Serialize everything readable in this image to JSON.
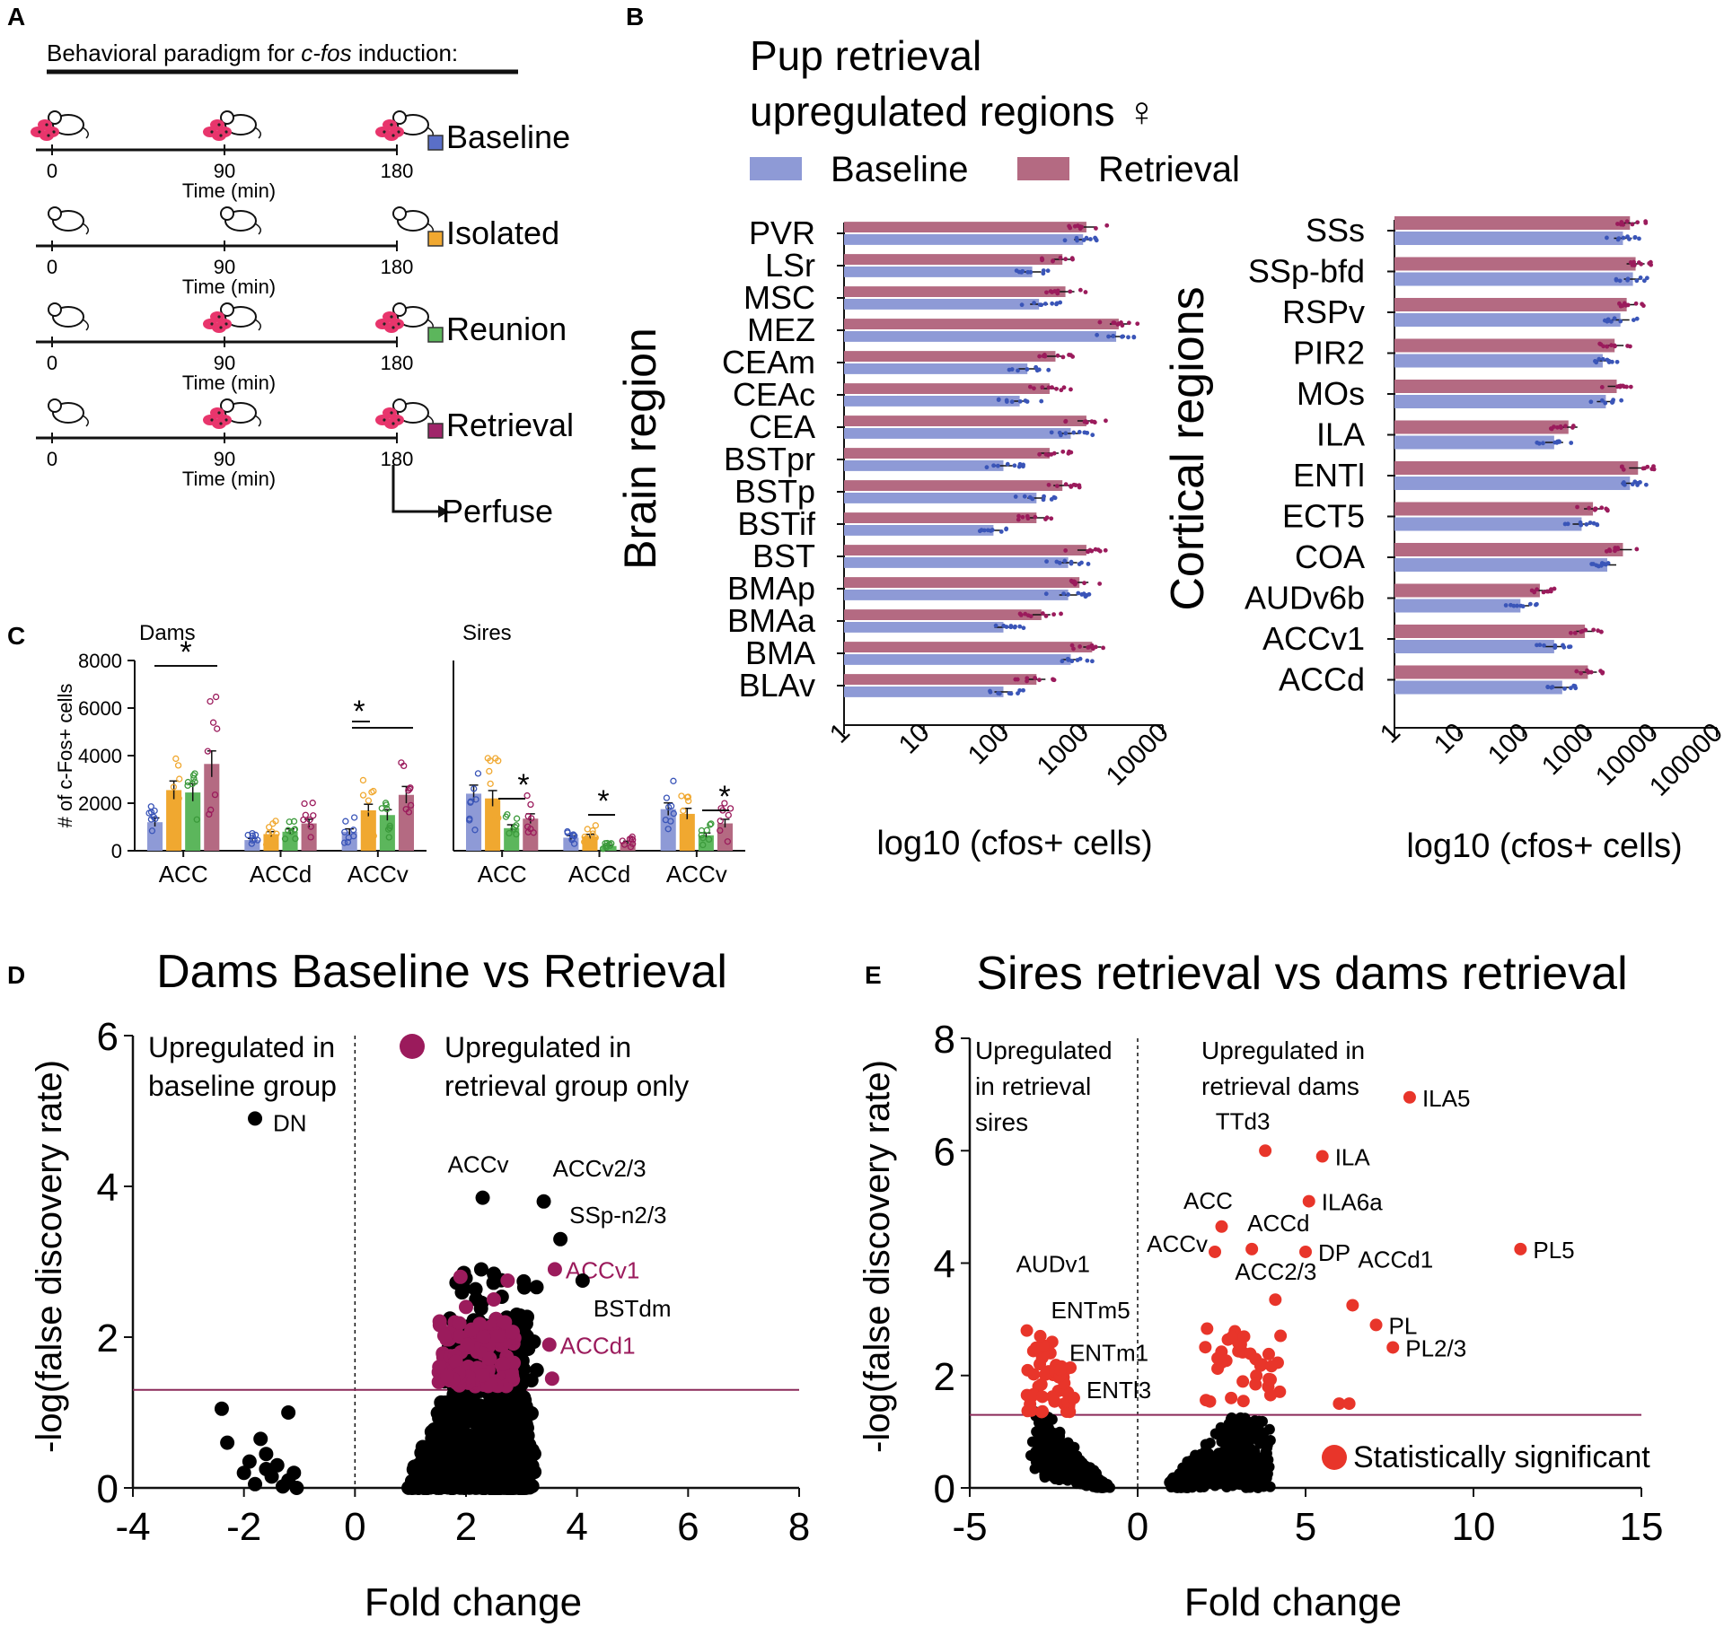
{
  "figure": {
    "palette": {
      "baseline": "#8e9ad6",
      "isolated": "#f0a830",
      "reunion": "#5cb65c",
      "retrieval": "#b46a82",
      "retrieval_dark": "#9b1b5c",
      "baseline_dot": "#3a55b8",
      "significant": "#e8352a",
      "threshold": "#8b2a5a"
    }
  },
  "panelA": {
    "letter": "A",
    "title": "Behavioral paradigm for c-fos induction:",
    "title_plain": "Behavioral paradigm for ",
    "title_italic": "c-fos",
    "title_tail": " induction:",
    "ticks": [
      "0",
      "90",
      "180"
    ],
    "time_label": "Time (min)",
    "rows": [
      {
        "label": "Baseline",
        "color": "#5a6fc8"
      },
      {
        "label": "Isolated",
        "color": "#f0a830"
      },
      {
        "label": "Reunion",
        "color": "#5cb65c"
      },
      {
        "label": "Retrieval",
        "color": "#a0256a"
      }
    ],
    "perfuse": "Perfuse",
    "icons": [
      "pup-cluster-icon",
      "mouse-icon"
    ]
  },
  "panelB": {
    "letter": "B",
    "title_line1": "Pup retrieval",
    "title_line2": "upregulated regions ♀",
    "legend": [
      "Baseline",
      "Retrieval"
    ],
    "chart_data": [
      {
        "type": "bar",
        "orientation": "horizontal",
        "scale": "log10",
        "ylabel": "Brain region",
        "xlabel": "log10 (cfos+ cells)",
        "xticks": [
          "1",
          "10",
          "100",
          "1000",
          "10000"
        ],
        "xlim": [
          1,
          10000
        ],
        "categories": [
          "PVR",
          "LSr",
          "MSC",
          "MEZ",
          "CEAm",
          "CEAc",
          "CEA",
          "BSTpr",
          "BSTp",
          "BSTif",
          "BST",
          "BMAp",
          "BMAa",
          "BMA",
          "BLAv"
        ],
        "series": [
          {
            "name": "Retrieval",
            "values": [
              1100,
              550,
              600,
              2800,
              450,
              380,
              1100,
              380,
              550,
              260,
              1100,
              900,
              300,
              1300,
              260
            ]
          },
          {
            "name": "Baseline",
            "values": [
              1000,
              230,
              280,
              2600,
              200,
              160,
              700,
              100,
              260,
              75,
              650,
              650,
              100,
              700,
              100
            ]
          }
        ]
      },
      {
        "type": "bar",
        "orientation": "horizontal",
        "scale": "log10",
        "ylabel": "Cortical regions",
        "xlabel": "log10 (cfos+ cells)",
        "xticks": [
          "1",
          "10",
          "100",
          "1000",
          "10000",
          "100000"
        ],
        "xlim": [
          1,
          100000
        ],
        "categories": [
          "SSs",
          "SSp-bfd",
          "RSPv",
          "PIR2",
          "MOs",
          "ILA",
          "ENTl",
          "ECT5",
          "COA",
          "AUDv6b",
          "ACCv1",
          "ACCd"
        ],
        "series": [
          {
            "name": "Retrieval",
            "values": [
              4500,
              5500,
              4000,
              2600,
              2800,
              500,
              6000,
              1200,
              3500,
              180,
              900,
              1000
            ]
          },
          {
            "name": "Baseline",
            "values": [
              3500,
              5000,
              3200,
              1700,
              1900,
              300,
              4500,
              800,
              2000,
              90,
              300,
              400
            ]
          }
        ]
      }
    ]
  },
  "panelC": {
    "letter": "C",
    "chart_data": {
      "type": "bar",
      "ylabel": "# of c-Fos+ cells",
      "ylim": [
        0,
        8000
      ],
      "yticks": [
        "0",
        "2000",
        "4000",
        "6000",
        "8000"
      ],
      "groups": [
        "Baseline",
        "Isolated",
        "Reunion",
        "Retrieval"
      ],
      "subplots": [
        {
          "title": "Dams",
          "categories": [
            "ACC",
            "ACCd",
            "ACCv"
          ],
          "series": [
            {
              "name": "Baseline",
              "values": [
                1200,
                450,
                800
              ]
            },
            {
              "name": "Isolated",
              "values": [
                2550,
                700,
                1700
              ]
            },
            {
              "name": "Reunion",
              "values": [
                2450,
                800,
                1500
              ]
            },
            {
              "name": "Retrieval",
              "values": [
                3650,
                1150,
                2350
              ]
            }
          ],
          "significance": [
            "*",
            "*"
          ]
        },
        {
          "title": "Sires",
          "categories": [
            "ACC",
            "ACCd",
            "ACCv"
          ],
          "series": [
            {
              "name": "Baseline",
              "values": [
                2400,
                550,
                1750
              ]
            },
            {
              "name": "Isolated",
              "values": [
                2200,
                600,
                1550
              ]
            },
            {
              "name": "Reunion",
              "values": [
                950,
                200,
                650
              ]
            },
            {
              "name": "Retrieval",
              "values": [
                1350,
                350,
                1150
              ]
            }
          ],
          "significance": [
            "*",
            "*",
            "*"
          ]
        }
      ]
    }
  },
  "panelD": {
    "letter": "D",
    "chart_data": {
      "type": "scatter",
      "title": "Dams Baseline vs Retrieval",
      "xlabel": "Fold change",
      "ylabel": "-log(false discovery rate)",
      "xlim": [
        -4,
        8
      ],
      "ylim": [
        0,
        6
      ],
      "xticks": [
        "-4",
        "-2",
        "0",
        "2",
        "4",
        "6",
        "8"
      ],
      "yticks": [
        "0",
        "2",
        "4",
        "6"
      ],
      "threshold": 1.3,
      "annotation_left": [
        "Upregulated in",
        "baseline group"
      ],
      "legend_label": [
        "Upregulated in",
        "retrieval group only"
      ],
      "labeled_points": [
        {
          "label": "DN",
          "x": -1.8,
          "y": 4.9,
          "group": "other"
        },
        {
          "label": "ACCv",
          "x": 2.3,
          "y": 3.85,
          "group": "other"
        },
        {
          "label": "ACCv2/3",
          "x": 3.4,
          "y": 3.8,
          "group": "other"
        },
        {
          "label": "SSp-n2/3",
          "x": 3.7,
          "y": 3.3,
          "group": "other"
        },
        {
          "label": "ACCv1",
          "x": 3.6,
          "y": 2.9,
          "group": "retrieval"
        },
        {
          "label": "BSTdm",
          "x": 4.1,
          "y": 2.75,
          "group": "other"
        },
        {
          "label": "ACCd1",
          "x": 3.5,
          "y": 1.9,
          "group": "retrieval"
        }
      ]
    }
  },
  "panelE": {
    "letter": "E",
    "chart_data": {
      "type": "scatter",
      "title": "Sires retrieval vs dams retrieval",
      "xlabel": "Fold change",
      "ylabel": "-log(false discovery rate)",
      "xlim": [
        -5,
        15
      ],
      "ylim": [
        0,
        8
      ],
      "xticks": [
        "-5",
        "0",
        "5",
        "10",
        "15"
      ],
      "yticks": [
        "0",
        "2",
        "4",
        "6",
        "8"
      ],
      "threshold": 1.3,
      "annotation_left": [
        "Upregulated",
        "in retrieval",
        "sires"
      ],
      "annotation_right": [
        "Upregulated in",
        "retrieval dams"
      ],
      "legend_label": "Statistically significant",
      "labeled_points": [
        {
          "label": "ILA5",
          "x": 8.1,
          "y": 6.95
        },
        {
          "label": "TTd3",
          "x": 3.8,
          "y": 6.0
        },
        {
          "label": "ILA",
          "x": 5.5,
          "y": 5.9
        },
        {
          "label": "ILA6a",
          "x": 5.1,
          "y": 5.1
        },
        {
          "label": "ACC",
          "x": 2.5,
          "y": 4.65
        },
        {
          "label": "ACCd",
          "x": 3.4,
          "y": 4.25
        },
        {
          "label": "ACCv",
          "x": 2.3,
          "y": 4.2
        },
        {
          "label": "DP",
          "x": 5.0,
          "y": 4.2
        },
        {
          "label": "PL5",
          "x": 11.4,
          "y": 4.25
        },
        {
          "label": "AUDv1",
          "x": -3.3,
          "y": 2.8
        },
        {
          "label": "ACC2/3",
          "x": 4.1,
          "y": 3.35
        },
        {
          "label": "ACCd1",
          "x": 6.4,
          "y": 3.25
        },
        {
          "label": "ENTm5",
          "x": -2.9,
          "y": 2.7
        },
        {
          "label": "PL",
          "x": 7.1,
          "y": 2.9
        },
        {
          "label": "ENTm1",
          "x": -2.3,
          "y": 2.1
        },
        {
          "label": "PL2/3",
          "x": 7.6,
          "y": 2.5
        },
        {
          "label": "ENTl3",
          "x": -1.9,
          "y": 1.6
        }
      ]
    }
  }
}
